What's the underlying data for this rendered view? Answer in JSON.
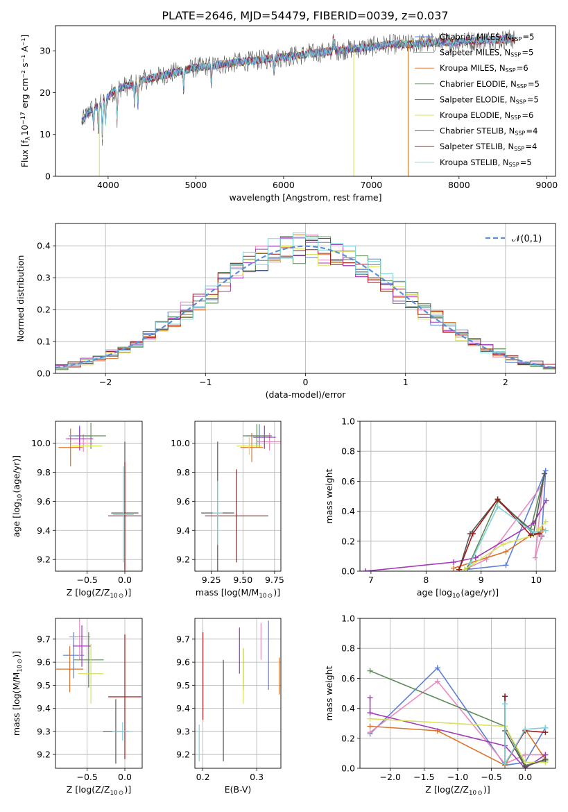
{
  "title": "PLATE=2646, MJD=54479, FIBERID=0039, z=0.037",
  "colors": [
    "#5b7fd6",
    "#e88bbf",
    "#d9742a",
    "#5f8a5a",
    "#a13ab8",
    "#d7e05a",
    "#555555",
    "#a01818",
    "#7fd3d9"
  ],
  "legend_spectrum": [
    {
      "pre": "Chabrier MILES, N",
      "sub": "SSP",
      "post": "=5"
    },
    {
      "pre": "Salpeter MILES, N",
      "sub": "SSP",
      "post": "=5"
    },
    {
      "pre": "Kroupa MILES, N",
      "sub": "SSP",
      "post": "=6"
    },
    {
      "pre": "Chabrier ELODIE, N",
      "sub": "SSP",
      "post": "=5"
    },
    {
      "pre": "Salpeter ELODIE, N",
      "sub": "SSP",
      "post": "=5"
    },
    {
      "pre": "Kroupa ELODIE, N",
      "sub": "SSP",
      "post": "=6"
    },
    {
      "pre": "Chabrier STELIB, N",
      "sub": "SSP",
      "post": "=4"
    },
    {
      "pre": "Salpeter STELIB, N",
      "sub": "SSP",
      "post": "=4"
    },
    {
      "pre": "Kroupa STELIB, N",
      "sub": "SSP",
      "post": "=5"
    }
  ],
  "chart_data": [
    {
      "id": "spectrum",
      "type": "line",
      "xlabel": "wavelength [Angstrom, rest frame]",
      "ylabel": {
        "pre": "Flux [f",
        "s1": "λ",
        "mid": "10",
        "s2": "−17",
        "post": " erg cm⁻² s⁻¹ A⁻¹]"
      },
      "xlim": [
        3400,
        9100
      ],
      "ylim": [
        0,
        36
      ],
      "xticks": [
        4000,
        5000,
        6000,
        7000,
        8000,
        9000
      ],
      "yticks": [
        0,
        10,
        20,
        30
      ],
      "x": [
        3700,
        3800,
        3900,
        4000,
        4100,
        4200,
        4300,
        4400,
        4500,
        4600,
        4700,
        4800,
        4900,
        5000,
        5200,
        5400,
        5600,
        5800,
        6000,
        6200,
        6400,
        6600,
        6800,
        7000,
        7200,
        7400,
        7600,
        7800,
        8000,
        8200,
        8400,
        8600
      ],
      "flux": [
        13,
        16,
        17,
        19,
        21,
        21.5,
        22,
        23,
        23.5,
        24,
        24.5,
        25,
        25.5,
        26,
        26.5,
        27,
        27.5,
        28,
        28.5,
        29,
        29.5,
        30,
        30.5,
        31,
        31.5,
        31.5,
        31.8,
        32,
        32.2,
        32.4,
        32.6,
        32.8
      ],
      "drops": [
        {
          "x": 3900,
          "model": 5
        },
        {
          "x": 6800,
          "model": 5
        },
        {
          "x": 7420,
          "model": 2
        }
      ]
    },
    {
      "id": "residuals",
      "type": "histogram",
      "xlabel": "(data-model)/error",
      "ylabel": "Normed distribution",
      "xlim": [
        -2.5,
        2.5
      ],
      "ylim": [
        0,
        0.47
      ],
      "xticks": [
        -2,
        -1,
        0,
        1,
        2
      ],
      "yticks": [
        0,
        0.1,
        0.2,
        0.3,
        0.4
      ],
      "bin_width": 0.125,
      "reference": {
        "label": "𝒩(0,1)",
        "color": "#5b8fd6"
      }
    },
    {
      "id": "age-vs-Z",
      "type": "errorbar",
      "xlabel": {
        "pre": "Z [log",
        "sub": "10",
        "mid": "(Z/Z",
        "sub2": "⊙",
        "post": ")]"
      },
      "ylabel": {
        "pre": "age  [log",
        "sub": "10",
        "post": "(age/yr)]",
        "italic": "age/yr"
      },
      "xlim": [
        -0.92,
        0.23
      ],
      "ylim": [
        9.12,
        10.15
      ],
      "xticks": [
        -0.5,
        0.0
      ],
      "yticks": [
        9.2,
        9.4,
        9.6,
        9.8,
        10.0
      ],
      "points": [
        {
          "x": -0.6,
          "xerr": 0.14,
          "y": 10.05,
          "yerr": 0.07,
          "model": 0
        },
        {
          "x": -0.55,
          "xerr": 0.13,
          "y": 10.0,
          "yerr": 0.06,
          "model": 1
        },
        {
          "x": -0.72,
          "xerr": 0.16,
          "y": 9.97,
          "yerr": 0.13,
          "model": 2
        },
        {
          "x": -0.45,
          "xerr": 0.2,
          "y": 10.05,
          "yerr": 0.09,
          "model": 3
        },
        {
          "x": -0.6,
          "xerr": 0.18,
          "y": 10.03,
          "yerr": 0.08,
          "model": 4
        },
        {
          "x": -0.5,
          "xerr": 0.2,
          "y": 9.98,
          "yerr": 0.05,
          "model": 5
        },
        {
          "x": 0.0,
          "xerr": 0.18,
          "y": 9.52,
          "yerr": 0.49,
          "model": 6
        },
        {
          "x": 0.0,
          "xerr": 0.22,
          "y": 9.5,
          "yerr": 0.37,
          "model": 7
        },
        {
          "x": -0.02,
          "xerr": 0.14,
          "y": 9.51,
          "yerr": 0.33,
          "model": 8
        }
      ]
    },
    {
      "id": "age-vs-mass",
      "type": "errorbar",
      "xlabel": {
        "pre": "mass [log",
        "sub": "10",
        "mid": "(M/M",
        "sub2": "⊙",
        "post": ")]"
      },
      "xlim": [
        9.12,
        9.8
      ],
      "ylim": [
        9.12,
        10.15
      ],
      "xticks": [
        9.25,
        9.5,
        9.75
      ],
      "yticks": [
        9.2,
        9.4,
        9.6,
        9.8,
        10.0
      ],
      "points": [
        {
          "x": 9.63,
          "xerr": 0.1,
          "y": 10.05,
          "yerr": 0.08,
          "model": 0
        },
        {
          "x": 9.71,
          "xerr": 0.1,
          "y": 10.01,
          "yerr": 0.06,
          "model": 1
        },
        {
          "x": 9.57,
          "xerr": 0.09,
          "y": 9.97,
          "yerr": 0.1,
          "model": 2
        },
        {
          "x": 9.61,
          "xerr": 0.11,
          "y": 10.05,
          "yerr": 0.08,
          "model": 3
        },
        {
          "x": 9.67,
          "xerr": 0.09,
          "y": 10.04,
          "yerr": 0.08,
          "model": 4
        },
        {
          "x": 9.55,
          "xerr": 0.1,
          "y": 9.98,
          "yerr": 0.06,
          "model": 5
        },
        {
          "x": 9.3,
          "xerr": 0.13,
          "y": 9.52,
          "yerr": 0.49,
          "model": 6
        },
        {
          "x": 9.45,
          "xerr": 0.25,
          "y": 9.5,
          "yerr": 0.32,
          "model": 7
        },
        {
          "x": 9.3,
          "xerr": 0.04,
          "y": 9.52,
          "yerr": 0.22,
          "model": 8
        }
      ]
    },
    {
      "id": "massweight-vs-age",
      "type": "line",
      "xlabel": {
        "pre": "age  [log",
        "sub": "10",
        "post": "(age/yr)]"
      },
      "ylabel": "mass weight",
      "xlim": [
        6.8,
        10.35
      ],
      "ylim": [
        0,
        1
      ],
      "xticks": [
        7,
        8,
        9,
        10
      ],
      "yticks": [
        0,
        0.2,
        0.4,
        0.6,
        0.8,
        1.0
      ],
      "series": [
        {
          "model": 0,
          "x": [
            8.7,
            9.45,
            10.17,
            10.1
          ],
          "y": [
            0.01,
            0.04,
            0.67,
            0.23
          ]
        },
        {
          "model": 1,
          "x": [
            8.7,
            9.1,
            10.12,
            9.98,
            10.1
          ],
          "y": [
            0.01,
            0.08,
            0.58,
            0.09,
            0.24
          ]
        },
        {
          "model": 2,
          "x": [
            8.5,
            9.45,
            9.9,
            10.08,
            10.12
          ],
          "y": [
            0.02,
            0.13,
            0.24,
            0.26,
            0.28
          ]
        },
        {
          "model": 3,
          "x": [
            8.75,
            9.3,
            9.9,
            10.15
          ],
          "y": [
            0.02,
            0.47,
            0.28,
            0.65
          ]
        },
        {
          "model": 4,
          "x": [
            6.9,
            8.5,
            8.9,
            9.95,
            10.18
          ],
          "y": [
            0.0,
            0.06,
            0.09,
            0.32,
            0.47
          ]
        },
        {
          "model": 5,
          "x": [
            8.7,
            9.4,
            9.95,
            10.05,
            10.17
          ],
          "y": [
            0.01,
            0.18,
            0.24,
            0.28,
            0.33
          ]
        },
        {
          "model": 6,
          "x": [
            8.6,
            8.8,
            9.3,
            9.95,
            10.15
          ],
          "y": [
            0.01,
            0.25,
            0.48,
            0.25,
            0.65
          ]
        },
        {
          "model": 7,
          "x": [
            8.6,
            8.85,
            9.3,
            9.9,
            10.05
          ],
          "y": [
            0.01,
            0.25,
            0.48,
            0.24,
            0.25
          ]
        },
        {
          "model": 8,
          "x": [
            8.8,
            9.3,
            9.95,
            10.17
          ],
          "y": [
            0.05,
            0.43,
            0.26,
            0.27
          ]
        }
      ]
    },
    {
      "id": "mass-vs-Z",
      "type": "errorbar",
      "xlabel": {
        "pre": "Z [log",
        "sub": "10",
        "mid": "(Z/Z",
        "sub2": "⊙",
        "post": ")]"
      },
      "ylabel": {
        "pre": "mass [log",
        "sub": "10",
        "mid": "(M/M",
        "sub2": "⊙",
        "post": ")]"
      },
      "xlim": [
        -0.92,
        0.23
      ],
      "ylim": [
        9.14,
        9.79
      ],
      "xticks": [
        -0.5,
        0.0
      ],
      "yticks": [
        9.2,
        9.3,
        9.4,
        9.5,
        9.6,
        9.7
      ],
      "points": [
        {
          "x": -0.68,
          "xerr": 0.14,
          "y": 9.63,
          "yerr": 0.1,
          "model": 0
        },
        {
          "x": -0.6,
          "xerr": 0.14,
          "y": 9.71,
          "yerr": 0.1,
          "model": 1
        },
        {
          "x": -0.73,
          "xerr": 0.18,
          "y": 9.57,
          "yerr": 0.1,
          "model": 2
        },
        {
          "x": -0.48,
          "xerr": 0.2,
          "y": 9.61,
          "yerr": 0.12,
          "model": 3
        },
        {
          "x": -0.57,
          "xerr": 0.12,
          "y": 9.67,
          "yerr": 0.09,
          "model": 4
        },
        {
          "x": -0.45,
          "xerr": 0.17,
          "y": 9.55,
          "yerr": 0.13,
          "model": 5
        },
        {
          "x": -0.12,
          "xerr": 0.17,
          "y": 9.3,
          "yerr": 0.14,
          "model": 6
        },
        {
          "x": 0.0,
          "xerr": 0.22,
          "y": 9.45,
          "yerr": 0.27,
          "model": 7
        },
        {
          "x": -0.03,
          "xerr": 0.14,
          "y": 9.3,
          "yerr": 0.04,
          "model": 8
        }
      ]
    },
    {
      "id": "mass-vs-ebv",
      "type": "errorbar",
      "xlabel": "E(B-V)",
      "xlim": [
        0.185,
        0.345
      ],
      "ylim": [
        9.14,
        9.79
      ],
      "xticks": [
        0.2,
        0.3
      ],
      "yticks": [
        9.2,
        9.3,
        9.4,
        9.5,
        9.6,
        9.7
      ],
      "points": [
        {
          "x": 0.322,
          "y": 9.63,
          "yerr": 0.15,
          "model": 0
        },
        {
          "x": 0.308,
          "y": 9.69,
          "yerr": 0.08,
          "model": 1
        },
        {
          "x": 0.342,
          "y": 9.54,
          "yerr": 0.08,
          "model": 2
        },
        {
          "x": 0.275,
          "y": 9.57,
          "yerr": 0.09,
          "model": 3
        },
        {
          "x": 0.268,
          "y": 9.65,
          "yerr": 0.1,
          "model": 4
        },
        {
          "x": 0.275,
          "y": 9.54,
          "yerr": 0.12,
          "model": 5
        },
        {
          "x": 0.238,
          "y": 9.39,
          "yerr": 0.22,
          "model": 6
        },
        {
          "x": 0.2,
          "y": 9.54,
          "yerr": 0.19,
          "model": 7
        },
        {
          "x": 0.193,
          "y": 9.25,
          "yerr": 0.08,
          "model": 8
        }
      ]
    },
    {
      "id": "massweight-vs-Z",
      "type": "line",
      "xlabel": {
        "pre": "Z [log",
        "sub": "10",
        "mid": "(Z/Z",
        "sub2": "⊙",
        "post": ")]"
      },
      "ylabel": "mass weight",
      "xlim": [
        -2.45,
        0.45
      ],
      "ylim": [
        0,
        1
      ],
      "xticks": [
        -2.0,
        -1.5,
        -1.0,
        -0.5,
        0.0
      ],
      "yticks": [
        0,
        0.2,
        0.4,
        0.6,
        0.8,
        1.0
      ],
      "series": [
        {
          "model": 0,
          "x": [
            -2.3,
            -1.3,
            -0.3,
            0.0,
            0.3
          ],
          "y": [
            0.23,
            0.67,
            0.02,
            0.04,
            0.27
          ]
        },
        {
          "model": 1,
          "x": [
            -2.3,
            -1.3,
            -0.3,
            0.0,
            0.3
          ],
          "y": [
            0.24,
            0.58,
            0.03,
            0.09,
            0.09
          ]
        },
        {
          "model": 2,
          "x": [
            -2.3,
            -1.3,
            -0.3,
            0.0,
            0.3
          ],
          "y": [
            0.28,
            0.25,
            0.02,
            0.26,
            0.06
          ]
        },
        {
          "model": 3,
          "x": [
            -2.3,
            -0.3,
            0.0,
            0.3
          ],
          "y": [
            0.65,
            0.28,
            0.02,
            0.05
          ]
        },
        {
          "model": 4,
          "x": [
            -2.3,
            -2.3,
            -0.3,
            0.0,
            0.3
          ],
          "y": [
            0.47,
            0.37,
            0.15,
            0.0,
            0.09
          ]
        },
        {
          "model": 5,
          "x": [
            -2.3,
            -0.3,
            0.0,
            0.3
          ],
          "y": [
            0.33,
            0.28,
            0.04,
            0.04
          ]
        },
        {
          "model": 6,
          "x": [
            -0.3,
            -0.3,
            0.0,
            0.3
          ],
          "y": [
            0.48,
            0.25,
            0.01,
            0.06
          ]
        },
        {
          "model": 7,
          "x": [
            -0.3,
            -0.3,
            0.0,
            0.3
          ],
          "y": [
            0.48,
            0.03,
            0.25,
            0.24
          ]
        },
        {
          "model": 8,
          "x": [
            -0.3,
            -0.3,
            0.0,
            0.3
          ],
          "y": [
            0.43,
            0.03,
            0.26,
            0.27
          ]
        }
      ]
    }
  ]
}
